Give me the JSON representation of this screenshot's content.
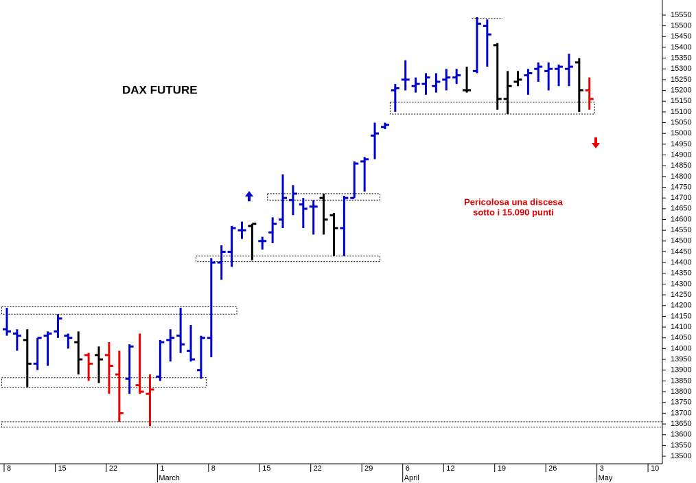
{
  "chart_data": {
    "type": "ohlc",
    "title": "DAX FUTURE",
    "annotation": [
      "Pericolosa una discesa",
      "sotto i 15.090 punti"
    ],
    "categories": [
      "8",
      null,
      null,
      null,
      null,
      "15",
      null,
      null,
      null,
      null,
      "22",
      null,
      null,
      null,
      null,
      "1",
      null,
      null,
      null,
      null,
      "8",
      null,
      null,
      null,
      null,
      "15",
      null,
      null,
      null,
      null,
      "22",
      null,
      null,
      null,
      null,
      "29",
      null,
      null,
      null,
      "6",
      null,
      null,
      null,
      "12",
      null,
      null,
      null,
      null,
      "19",
      null,
      null,
      null,
      null,
      "26",
      null,
      null,
      null,
      null,
      "3",
      null,
      null,
      null,
      null,
      "10",
      null
    ],
    "months": [
      "March",
      "April",
      "May"
    ],
    "open": [
      14090,
      14070,
      14040,
      13930,
      14060,
      14080,
      14060,
      14030,
      13970,
      13970,
      13970,
      13880,
      13860,
      13830,
      13790,
      13870,
      14040,
      14060,
      13990,
      13900,
      14050,
      14400,
      14450,
      14550,
      14570,
      14500,
      14540,
      14600,
      14690,
      14670,
      14660,
      14700,
      14620,
      14560,
      14700,
      14870,
      14990,
      15030,
      15200,
      15250,
      15220,
      15230,
      15220,
      15250,
      15260,
      15200,
      15290,
      15500,
      15410,
      15160,
      15240,
      15270,
      15300,
      15290,
      15300,
      15300,
      15330,
      15200,
      null,
      null,
      null,
      null,
      null,
      null,
      null
    ],
    "high": [
      14190,
      14090,
      14090,
      14050,
      14080,
      14160,
      14070,
      14080,
      13980,
      14010,
      14030,
      13990,
      14020,
      14070,
      13880,
      14040,
      14090,
      14190,
      14110,
      14060,
      14420,
      14480,
      14570,
      14590,
      14580,
      14520,
      14610,
      14810,
      14760,
      14700,
      14690,
      14720,
      14630,
      14710,
      14870,
      14890,
      15050,
      15050,
      15230,
      15340,
      15260,
      15280,
      15280,
      15300,
      15300,
      15310,
      15540,
      15530,
      15420,
      15290,
      15290,
      15300,
      15330,
      15330,
      15320,
      15370,
      15350,
      15260,
      null,
      null,
      null,
      null,
      null,
      null,
      null
    ],
    "low": [
      14060,
      13990,
      13820,
      13900,
      13920,
      14050,
      14000,
      13880,
      13850,
      13840,
      13790,
      13660,
      13790,
      13790,
      13640,
      13850,
      13940,
      13980,
      13940,
      13860,
      13960,
      14320,
      14380,
      14510,
      14410,
      14460,
      14490,
      14560,
      14620,
      14560,
      14530,
      14530,
      14430,
      14430,
      14700,
      14730,
      14880,
      15020,
      15100,
      15200,
      15190,
      15180,
      15190,
      15200,
      15230,
      15190,
      15280,
      15310,
      15110,
      15090,
      15220,
      15180,
      15240,
      15200,
      15220,
      15220,
      15100,
      15110,
      null,
      null,
      null,
      null,
      null,
      null,
      null
    ],
    "close": [
      14080,
      14060,
      13930,
      14050,
      14070,
      14140,
      14050,
      13950,
      13930,
      13950,
      13920,
      13700,
      14010,
      13800,
      13810,
      14030,
      14050,
      14020,
      13950,
      14050,
      14400,
      14450,
      14560,
      14550,
      14580,
      14500,
      14580,
      14700,
      14720,
      14650,
      14660,
      14600,
      14560,
      14700,
      14860,
      14880,
      15000,
      15040,
      15210,
      15250,
      15230,
      15260,
      15240,
      15260,
      15270,
      15200,
      15510,
      15460,
      15160,
      15220,
      15250,
      15280,
      15310,
      15300,
      15310,
      15310,
      15200,
      15160,
      null,
      null,
      null,
      null,
      null,
      null,
      null
    ],
    "colors": [
      "#0000cc",
      "#0000cc",
      "#000000",
      "#0000cc",
      "#0000cc",
      "#0000cc",
      "#0000cc",
      "#000000",
      "#ee0000",
      "#000000",
      "#ee0000",
      "#ee0000",
      "#0000cc",
      "#ee0000",
      "#ee0000",
      "#0000cc",
      "#0000cc",
      "#0000cc",
      "#0000cc",
      "#0000cc",
      "#0000cc",
      "#0000cc",
      "#0000cc",
      "#0000cc",
      "#000000",
      "#0000cc",
      "#0000cc",
      "#0000cc",
      "#0000cc",
      "#0000cc",
      "#0000cc",
      "#000000",
      "#000000",
      "#0000cc",
      "#0000cc",
      "#0000cc",
      "#0000cc",
      "#0000cc",
      "#0000cc",
      "#0000cc",
      "#0000cc",
      "#0000cc",
      "#0000cc",
      "#0000cc",
      "#0000cc",
      "#000000",
      "#0000cc",
      "#0000cc",
      "#000000",
      "#000000",
      "#000000",
      "#0000cc",
      "#0000cc",
      "#0000cc",
      "#0000cc",
      "#0000cc",
      "#000000",
      "#ee0000",
      null,
      null,
      null,
      null,
      null,
      null,
      null
    ],
    "zones": [
      {
        "low": 14160,
        "high": 14195,
        "from": 0,
        "to": 22
      },
      {
        "low": 13820,
        "high": 13865,
        "from": 0,
        "to": 19
      },
      {
        "low": 13635,
        "high": 13660,
        "from": 0,
        "to": 64
      },
      {
        "low": 14405,
        "high": 14430,
        "from": 19,
        "to": 36
      },
      {
        "low": 14690,
        "high": 14720,
        "from": 26,
        "to": 36
      },
      {
        "low": 15090,
        "high": 15145,
        "from": 38,
        "to": 57
      },
      {
        "low": 15535,
        "high": 15535,
        "from": 46,
        "to": 48
      }
    ],
    "ylim": [
      13465,
      15620
    ],
    "yticks": [
      13500,
      13550,
      13600,
      13650,
      13700,
      13750,
      13800,
      13850,
      13900,
      13950,
      14000,
      14050,
      14100,
      14150,
      14200,
      14250,
      14300,
      14350,
      14400,
      14450,
      14500,
      14550,
      14600,
      14650,
      14700,
      14750,
      14800,
      14850,
      14900,
      14950,
      15000,
      15050,
      15100,
      15150,
      15200,
      15250,
      15300,
      15350,
      15400,
      15450,
      15500,
      15550
    ]
  }
}
